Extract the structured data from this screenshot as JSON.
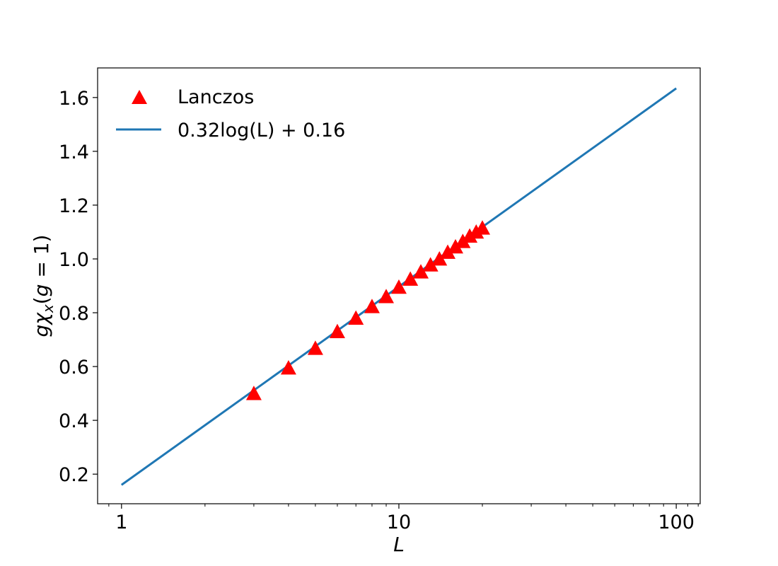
{
  "chart_data": {
    "type": "scatter",
    "xscale": "log",
    "xlim": [
      0.82,
      122
    ],
    "ylim": [
      0.09,
      1.71
    ],
    "xlabel": "L",
    "ylabel": "gχx(g = 1)",
    "xticks": [
      {
        "value": 1,
        "label": "1"
      },
      {
        "value": 10,
        "label": "10"
      },
      {
        "value": 100,
        "label": "100"
      }
    ],
    "yticks": [
      {
        "value": 0.2,
        "label": "0.2"
      },
      {
        "value": 0.4,
        "label": "0.4"
      },
      {
        "value": 0.6,
        "label": "0.6"
      },
      {
        "value": 0.8,
        "label": "0.8"
      },
      {
        "value": 1.0,
        "label": "1.0"
      },
      {
        "value": 1.2,
        "label": "1.2"
      },
      {
        "value": 1.4,
        "label": "1.4"
      },
      {
        "value": 1.6,
        "label": "1.6"
      }
    ],
    "legend": {
      "position": "top-left",
      "entries": [
        {
          "label": "Lanczos",
          "marker": "triangle",
          "color": "#ff0000"
        },
        {
          "label": "0.32log(L) + 0.16",
          "marker": "line",
          "color": "#1f77b4"
        }
      ]
    },
    "series": [
      {
        "name": "Lanczos",
        "kind": "scatter",
        "marker": "triangle",
        "color": "#ff0000",
        "x": [
          3,
          4,
          5,
          6,
          7,
          8,
          9,
          10,
          11,
          12,
          13,
          14,
          15,
          16,
          17,
          18,
          19,
          20
        ],
        "y": [
          0.5,
          0.595,
          0.668,
          0.73,
          0.78,
          0.823,
          0.86,
          0.895,
          0.925,
          0.952,
          0.978,
          1.0,
          1.025,
          1.045,
          1.065,
          1.085,
          1.1,
          1.115
        ]
      },
      {
        "name": "0.32log(L) + 0.16",
        "kind": "line",
        "color": "#1f77b4",
        "x": [
          1,
          100
        ],
        "y": [
          0.16,
          1.634
        ]
      }
    ]
  }
}
